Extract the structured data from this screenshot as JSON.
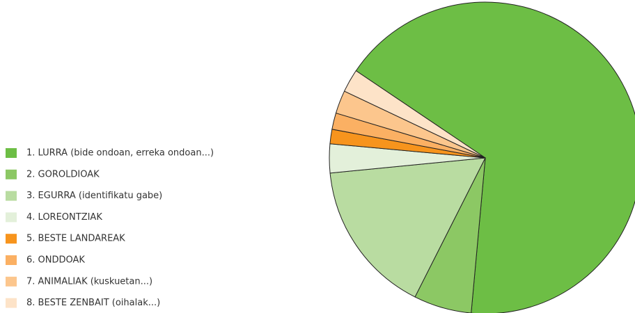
{
  "chart_data": {
    "type": "pie",
    "categories": [
      "1. LURRA (bide ondoan, erreka ondoan...)",
      "2. GOROLDIOAK",
      "3. EGURRA (identifikatu gabe)",
      "4. LOREONTZIAK",
      "5. BESTE LANDAREAK",
      "6. ONDDOAK",
      "7. ANIMALIAK (kuskuetan...)",
      "8. BESTE ZENBAIT (oihalak...)"
    ],
    "values": [
      67,
      6,
      16,
      3,
      1.5,
      1.7,
      2.4,
      2.4
    ],
    "colors": [
      "#6dbe45",
      "#8cc864",
      "#b9dca1",
      "#e3f0da",
      "#f7941d",
      "#fbb063",
      "#fcc68d",
      "#fde3c8"
    ]
  }
}
